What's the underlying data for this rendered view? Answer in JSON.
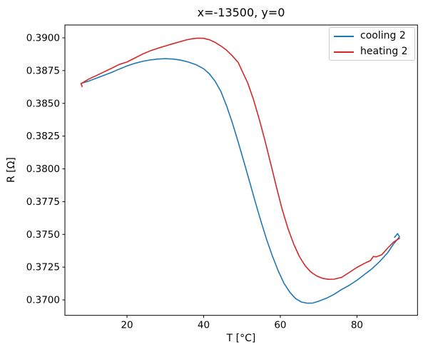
{
  "chart_data": {
    "type": "line",
    "title": "x=-13500, y=0",
    "xlabel": "T [°C]",
    "ylabel": "R [Ω]",
    "xlim": [
      3.8,
      95.8
    ],
    "ylim": [
      0.36882,
      0.39098
    ],
    "xticks": [
      "20",
      "40",
      "60",
      "80"
    ],
    "yticks": [
      "0.3700",
      "0.3725",
      "0.3750",
      "0.3775",
      "0.3800",
      "0.3825",
      "0.3850",
      "0.3875",
      "0.3900"
    ],
    "grid": false,
    "legend_position": "upper right",
    "axis_color": "#000000",
    "series": [
      {
        "name": "cooling 2",
        "color": "#1f77b4",
        "data": [
          [
            8.0,
            0.38652
          ],
          [
            10,
            0.3867
          ],
          [
            12,
            0.38692
          ],
          [
            14,
            0.38714
          ],
          [
            16,
            0.38736
          ],
          [
            18,
            0.38762
          ],
          [
            20,
            0.38785
          ],
          [
            22,
            0.38805
          ],
          [
            24,
            0.3882
          ],
          [
            26,
            0.38831
          ],
          [
            28,
            0.38838
          ],
          [
            30,
            0.38841
          ],
          [
            32,
            0.38838
          ],
          [
            34,
            0.3883
          ],
          [
            36,
            0.38815
          ],
          [
            38,
            0.38795
          ],
          [
            40,
            0.38764
          ],
          [
            41.5,
            0.38725
          ],
          [
            43,
            0.38668
          ],
          [
            44.5,
            0.3859
          ],
          [
            46,
            0.3848
          ],
          [
            47.5,
            0.3835
          ],
          [
            49,
            0.38205
          ],
          [
            50.5,
            0.38055
          ],
          [
            52,
            0.379
          ],
          [
            53.5,
            0.37745
          ],
          [
            55,
            0.37595
          ],
          [
            56.5,
            0.37455
          ],
          [
            58,
            0.3733
          ],
          [
            59.5,
            0.37218
          ],
          [
            61,
            0.37125
          ],
          [
            62.5,
            0.37058
          ],
          [
            64,
            0.3701
          ],
          [
            65.5,
            0.36984
          ],
          [
            67,
            0.36975
          ],
          [
            68.5,
            0.36976
          ],
          [
            70,
            0.3699
          ],
          [
            72,
            0.37012
          ],
          [
            74,
            0.37042
          ],
          [
            76,
            0.3708
          ],
          [
            78,
            0.37112
          ],
          [
            80,
            0.3715
          ],
          [
            82,
            0.37195
          ],
          [
            84,
            0.3724
          ],
          [
            86,
            0.37295
          ],
          [
            88,
            0.3736
          ],
          [
            89.5,
            0.37425
          ],
          [
            90.5,
            0.3746
          ],
          [
            91.1,
            0.37482
          ],
          [
            90.6,
            0.37506
          ],
          [
            89.8,
            0.37478
          ]
        ]
      },
      {
        "name": "heating 2",
        "color": "#d62728",
        "data": [
          [
            8.3,
            0.38628
          ],
          [
            8.0,
            0.3865
          ],
          [
            10,
            0.38685
          ],
          [
            12,
            0.38712
          ],
          [
            14,
            0.3874
          ],
          [
            16,
            0.38768
          ],
          [
            18,
            0.38797
          ],
          [
            20,
            0.38815
          ],
          [
            22,
            0.38845
          ],
          [
            24,
            0.38875
          ],
          [
            26,
            0.389
          ],
          [
            28,
            0.3892
          ],
          [
            30,
            0.38938
          ],
          [
            32,
            0.38955
          ],
          [
            34,
            0.38972
          ],
          [
            35.5,
            0.38984
          ],
          [
            37,
            0.38993
          ],
          [
            38.5,
            0.38998
          ],
          [
            40,
            0.38996
          ],
          [
            41.5,
            0.38985
          ],
          [
            43,
            0.38965
          ],
          [
            44.5,
            0.38938
          ],
          [
            46,
            0.38905
          ],
          [
            47.5,
            0.38862
          ],
          [
            49,
            0.38812
          ],
          [
            50,
            0.3875
          ],
          [
            51.5,
            0.38655
          ],
          [
            53,
            0.3853
          ],
          [
            54.5,
            0.3838
          ],
          [
            56,
            0.38215
          ],
          [
            57.5,
            0.3804
          ],
          [
            59,
            0.3786
          ],
          [
            60.5,
            0.3769
          ],
          [
            62,
            0.37545
          ],
          [
            63.5,
            0.37425
          ],
          [
            65,
            0.3733
          ],
          [
            66.5,
            0.3726
          ],
          [
            68,
            0.37212
          ],
          [
            69.5,
            0.37183
          ],
          [
            71,
            0.37165
          ],
          [
            72.5,
            0.37157
          ],
          [
            74,
            0.37158
          ],
          [
            76,
            0.37172
          ],
          [
            78,
            0.3721
          ],
          [
            80,
            0.37248
          ],
          [
            82,
            0.3728
          ],
          [
            83.5,
            0.373
          ],
          [
            84.3,
            0.37332
          ],
          [
            85,
            0.37328
          ],
          [
            86.5,
            0.37345
          ],
          [
            88,
            0.37395
          ],
          [
            89.5,
            0.3744
          ],
          [
            90.6,
            0.37462
          ],
          [
            91.1,
            0.3747
          ]
        ]
      }
    ]
  }
}
